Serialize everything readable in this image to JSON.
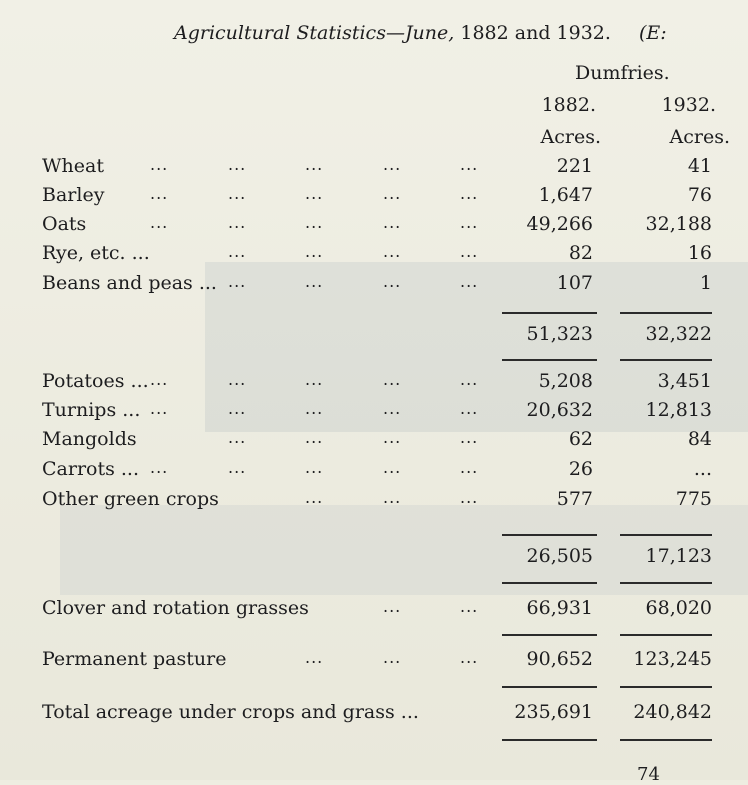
{
  "title": {
    "text": "Agricultural Statistics—June,",
    "years": "1882 and 1932.",
    "cut": "(E:"
  },
  "region": "Dumfries.",
  "col_years": [
    "1882.",
    "1932."
  ],
  "col_units": [
    "Acres.",
    "Acres."
  ],
  "groups": [
    {
      "rows": [
        {
          "label": "Wheat",
          "v1882": "221",
          "v1932": "41"
        },
        {
          "label": "Barley",
          "v1882": "1,647",
          "v1932": "76"
        },
        {
          "label": "Oats",
          "v1882": "49,266",
          "v1932": "32,188"
        },
        {
          "label": "Rye, etc. ...",
          "v1882": "82",
          "v1932": "16"
        },
        {
          "label": "Beans and peas ...",
          "v1882": "107",
          "v1932": "1"
        }
      ],
      "total": {
        "v1882": "51,323",
        "v1932": "32,322"
      }
    },
    {
      "rows": [
        {
          "label": "Potatoes ...",
          "v1882": "5,208",
          "v1932": "3,451"
        },
        {
          "label": "Turnips ...",
          "v1882": "20,632",
          "v1932": "12,813"
        },
        {
          "label": "Mangolds",
          "v1882": "62",
          "v1932": "84"
        },
        {
          "label": "Carrots ...",
          "v1882": "26",
          "v1932": "..."
        },
        {
          "label": "Other green crops",
          "v1882": "577",
          "v1932": "775"
        }
      ],
      "total": {
        "v1882": "26,505",
        "v1932": "17,123"
      }
    }
  ],
  "clover": {
    "label": "Clover and rotation grasses",
    "v1882": "66,931",
    "v1932": "68,020"
  },
  "pasture": {
    "label": "Permanent pasture",
    "v1882": "90,652",
    "v1932": "123,245"
  },
  "total": {
    "label": "Total acreage under crops and grass ...",
    "v1882": "235,691",
    "v1932": "240,842"
  },
  "page_number": "74"
}
